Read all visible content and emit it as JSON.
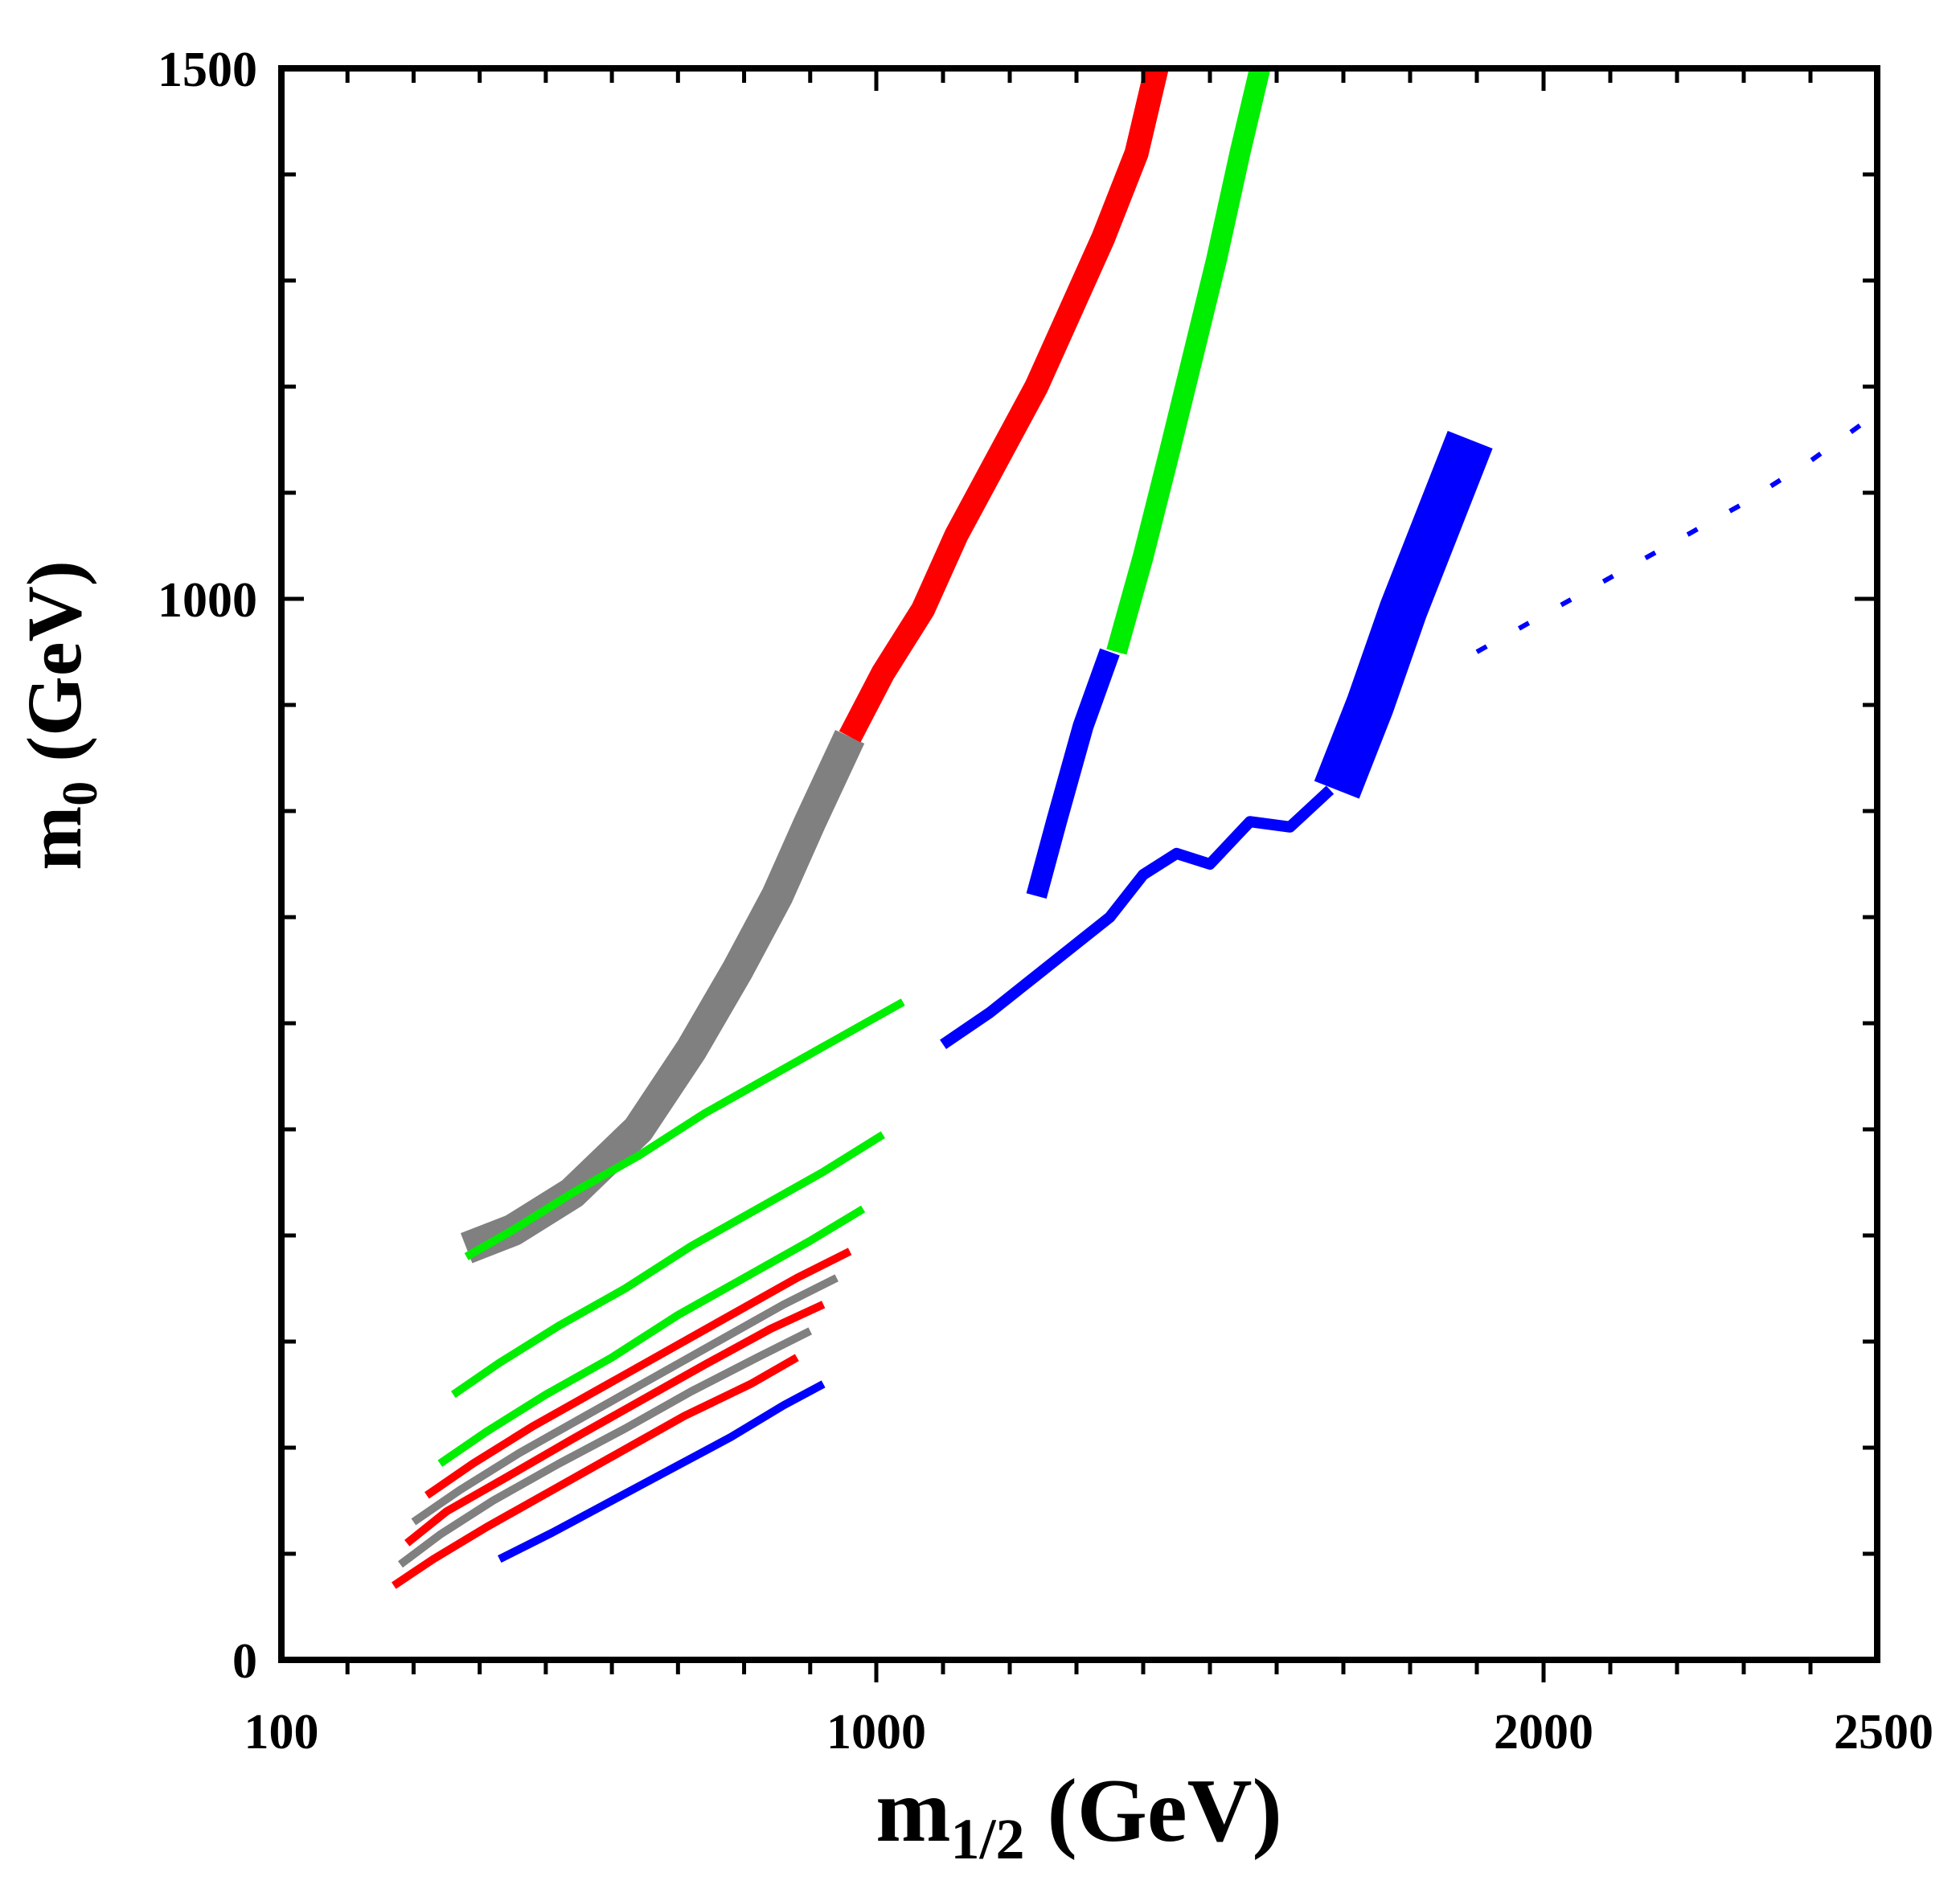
{
  "chart_data": {
    "type": "line",
    "title": "",
    "xlabel": {
      "main": "m",
      "sub": "1/2",
      "unit": " (GeV)"
    },
    "ylabel": {
      "main": "m",
      "sub": "0",
      "unit": " (GeV)"
    },
    "xlim": [
      100,
      2500
    ],
    "ylim": [
      0,
      1500
    ],
    "x_scale": "piecewise (100-1000 stretched)",
    "x_ticks": [
      {
        "value": 100,
        "label": "100"
      },
      {
        "value": 1000,
        "label": "1000"
      },
      {
        "value": 2000,
        "label": "2000"
      },
      {
        "value": 2500,
        "label": "2500"
      }
    ],
    "y_ticks": [
      {
        "value": 0,
        "label": "0"
      },
      {
        "value": 1000,
        "label": "1000"
      },
      {
        "value": 1500,
        "label": "1500"
      }
    ],
    "colors": {
      "gray": "#808080",
      "red": "#ff0000",
      "green": "#00ee00",
      "blue": "#0000ff",
      "axis": "#000000"
    },
    "series": [
      {
        "name": "gray-band-main",
        "color": "gray",
        "width": 40,
        "x": [
          380,
          450,
          540,
          640,
          720,
          790,
          850,
          900,
          960
        ],
        "y": [
          388,
          405,
          440,
          500,
          575,
          650,
          720,
          790,
          870
        ]
      },
      {
        "name": "red-band-main",
        "color": "red",
        "width": 30,
        "x": [
          960,
          1010,
          1070,
          1120,
          1180,
          1240,
          1290,
          1340,
          1390,
          1420
        ],
        "y": [
          870,
          930,
          990,
          1060,
          1130,
          1200,
          1270,
          1340,
          1420,
          1500
        ]
      },
      {
        "name": "green-band-main",
        "color": "green",
        "width": 26,
        "x": [
          1360,
          1400,
          1440,
          1475,
          1510,
          1545,
          1575
        ],
        "y": [
          950,
          1040,
          1140,
          1230,
          1320,
          1420,
          1500
        ]
      },
      {
        "name": "blue-band-inner",
        "color": "blue",
        "width": 26,
        "x": [
          1240,
          1270,
          1310,
          1350
        ],
        "y": [
          720,
          790,
          880,
          950
        ]
      },
      {
        "name": "blue-boundary",
        "color": "blue",
        "width": 14,
        "x": [
          1100,
          1170,
          1240,
          1300,
          1350,
          1400,
          1450,
          1500,
          1560,
          1620,
          1680
        ],
        "y": [
          580,
          610,
          645,
          675,
          700,
          740,
          760,
          750,
          790,
          785,
          820
        ]
      },
      {
        "name": "blue-region-right",
        "color": "blue",
        "width": 60,
        "x": [
          1690,
          1740,
          1790,
          1840,
          1890
        ],
        "y": [
          820,
          900,
          990,
          1070,
          1150
        ]
      },
      {
        "name": "blue-dotted-right",
        "color": "blue",
        "width": 6,
        "x": [
          1900,
          2000,
          2100,
          2200,
          2300,
          2400,
          2500
        ],
        "y": [
          950,
          985,
          1020,
          1055,
          1090,
          1130,
          1175
        ]
      },
      {
        "name": "stripe-1",
        "color": "green",
        "width": 10,
        "x": [
          380,
          450,
          540,
          640,
          740,
          840,
          940,
          1040
        ],
        "y": [
          380,
          405,
          440,
          475,
          515,
          550,
          585,
          620
        ]
      },
      {
        "name": "stripe-2",
        "color": "green",
        "width": 10,
        "x": [
          360,
          430,
          520,
          620,
          720,
          820,
          920,
          1010
        ],
        "y": [
          250,
          280,
          315,
          350,
          390,
          425,
          460,
          495
        ]
      },
      {
        "name": "stripe-3",
        "color": "green",
        "width": 10,
        "x": [
          340,
          410,
          500,
          600,
          700,
          800,
          900,
          980
        ],
        "y": [
          185,
          215,
          250,
          285,
          325,
          360,
          395,
          425
        ]
      },
      {
        "name": "stripe-4",
        "color": "red",
        "width": 10,
        "x": [
          320,
          390,
          480,
          580,
          680,
          780,
          880,
          960
        ],
        "y": [
          155,
          185,
          220,
          255,
          290,
          325,
          360,
          385
        ]
      },
      {
        "name": "stripe-5",
        "color": "gray",
        "width": 10,
        "x": [
          300,
          370,
          460,
          560,
          660,
          760,
          860,
          940
        ],
        "y": [
          130,
          160,
          195,
          230,
          265,
          300,
          335,
          360
        ]
      },
      {
        "name": "stripe-6",
        "color": "red",
        "width": 10,
        "x": [
          290,
          350,
          440,
          540,
          640,
          740,
          840,
          920
        ],
        "y": [
          110,
          140,
          172,
          208,
          243,
          278,
          312,
          335
        ]
      },
      {
        "name": "stripe-7",
        "color": "gray",
        "width": 10,
        "x": [
          280,
          340,
          420,
          520,
          620,
          720,
          820,
          900
        ],
        "y": [
          90,
          118,
          150,
          185,
          218,
          253,
          285,
          310
        ]
      },
      {
        "name": "stripe-8",
        "color": "red",
        "width": 10,
        "x": [
          270,
          330,
          410,
          510,
          610,
          710,
          810,
          880
        ],
        "y": [
          70,
          95,
          125,
          160,
          195,
          230,
          260,
          285
        ]
      },
      {
        "name": "stripe-9",
        "color": "blue",
        "width": 10,
        "x": [
          430,
          510,
          600,
          690,
          780,
          860,
          920
        ],
        "y": [
          95,
          120,
          150,
          180,
          210,
          240,
          260
        ]
      }
    ]
  }
}
